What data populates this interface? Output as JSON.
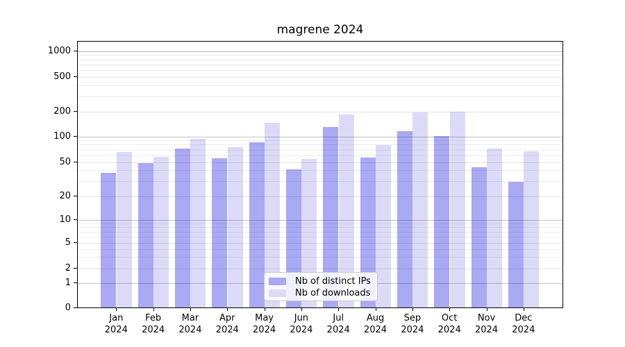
{
  "title": "magrene 2024",
  "chart_data": {
    "type": "bar",
    "title": "magrene 2024",
    "categories": [
      "Jan",
      "Feb",
      "Mar",
      "Apr",
      "May",
      "Jun",
      "Jul",
      "Aug",
      "Sep",
      "Oct",
      "Nov",
      "Dec"
    ],
    "x_year": "2024",
    "series": [
      {
        "name": "Nb of distinct IPs",
        "color": "#a9a9f4",
        "values": [
          37,
          48,
          71,
          54,
          84,
          40,
          127,
          55,
          114,
          100,
          43,
          29
        ]
      },
      {
        "name": "Nb of downloads",
        "color": "#dbdbf8",
        "values": [
          65,
          57,
          92,
          74,
          144,
          53,
          181,
          77,
          192,
          196,
          71,
          66
        ]
      }
    ],
    "yscale": "log-like (0,1,2,5,10,20,50,100,200,500,1000)",
    "y_ticks": [
      1000,
      500,
      200,
      100,
      50,
      20,
      10,
      5,
      2,
      1,
      0
    ],
    "ylim": [
      0,
      1300
    ],
    "grid": true,
    "legend_position": "bottom-center"
  }
}
